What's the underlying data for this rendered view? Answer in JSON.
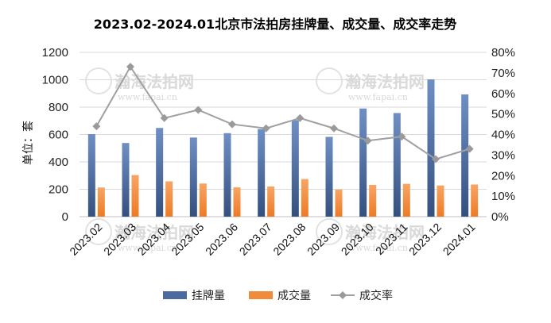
{
  "chart_data": {
    "type": "bar+line",
    "title": "2023.02-2024.01北京市法拍房挂牌量、成交量、成交率走势",
    "ylabel": "单位：套",
    "categories": [
      "2023.02",
      "2023.03",
      "2023.04",
      "2023.05",
      "2023.06",
      "2023.07",
      "2023.08",
      "2023.09",
      "2023.10",
      "2023.11",
      "2023.12",
      "2024.01"
    ],
    "series": [
      {
        "name": "挂牌量",
        "type": "bar",
        "axis": "left",
        "color": "#4a6aa0",
        "values": [
          603,
          538,
          648,
          578,
          610,
          640,
          705,
          583,
          790,
          757,
          1003,
          893
        ]
      },
      {
        "name": "成交量",
        "type": "bar",
        "axis": "left",
        "color": "#f08a3c",
        "values": [
          213,
          304,
          258,
          242,
          214,
          220,
          275,
          198,
          232,
          240,
          228,
          235
        ]
      },
      {
        "name": "成交率",
        "type": "line",
        "axis": "right",
        "color": "#a0a0a0",
        "values": [
          44,
          73,
          48,
          52,
          45,
          43,
          48,
          43,
          37,
          39,
          28,
          33
        ]
      }
    ],
    "left_axis": {
      "min": 0,
      "max": 1200,
      "step": 200,
      "tick_labels": [
        "0",
        "200",
        "400",
        "600",
        "800",
        "1000",
        "1200"
      ]
    },
    "right_axis": {
      "min": 0,
      "max": 80,
      "step": 10,
      "tick_labels": [
        "0%",
        "10%",
        "20%",
        "30%",
        "40%",
        "50%",
        "60%",
        "70%",
        "80%"
      ]
    },
    "grid": true,
    "legend_position": "bottom"
  },
  "watermark": {
    "text": "瀚海法拍网",
    "url": "www.fapai.cn"
  }
}
